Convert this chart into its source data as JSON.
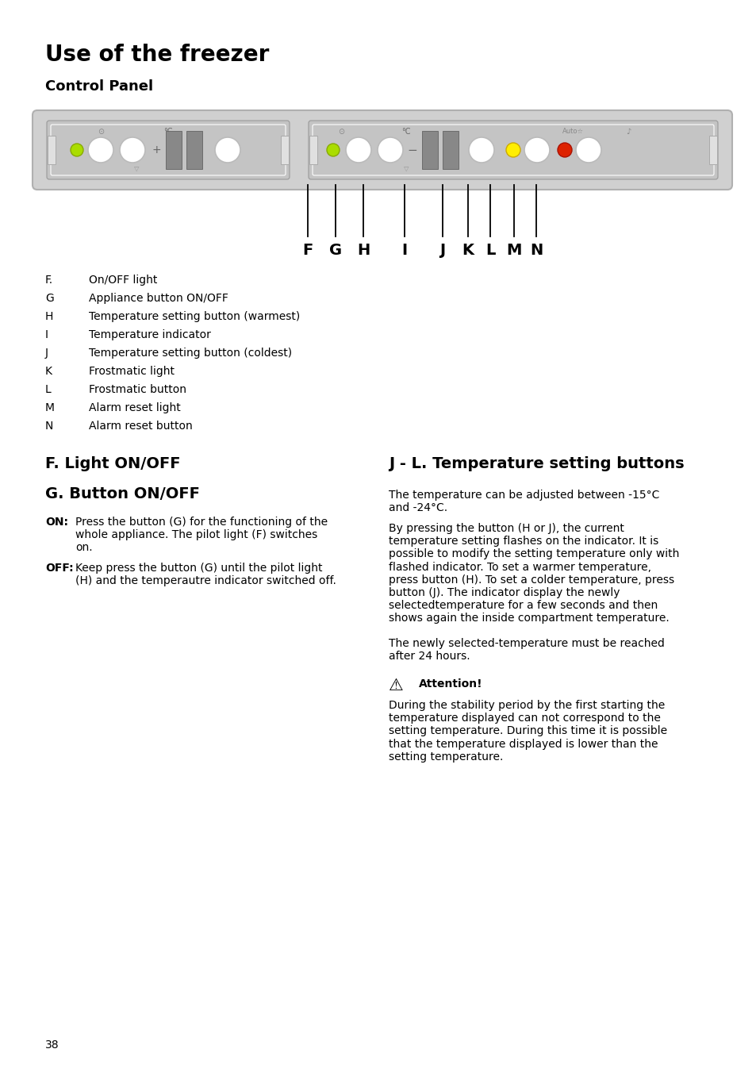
{
  "title": "Use of the freezer",
  "subtitle": "Control Panel",
  "page_number": "38",
  "background_color": "#ffffff",
  "labels_list": [
    [
      "F.",
      "On/OFF light"
    ],
    [
      "G",
      "Appliance button ON/OFF"
    ],
    [
      "H",
      "Temperature setting button (warmest)"
    ],
    [
      "I",
      "Temperature indicator"
    ],
    [
      "J",
      "Temperature setting button (coldest)"
    ],
    [
      "K",
      "Frostmatic light"
    ],
    [
      "L",
      "Frostmatic button"
    ],
    [
      "M",
      "Alarm reset light"
    ],
    [
      "N",
      "Alarm reset button"
    ]
  ],
  "section_left_title1": "F. Light ON/OFF",
  "section_left_title2": "G. Button ON/OFF",
  "on_label": "ON:",
  "on_body": "Press the button (G) for the functioning of the\nwhole appliance. The pilot light (F) switches\non.",
  "off_label": "OFF:",
  "off_body": "Keep press the button (G) until the pilot light\n(H) and the temperautre indicator switched off.",
  "section_right_title": "J - L. Temperature setting buttons",
  "right_para1": "The temperature can be adjusted between -15°C\nand -24°C.",
  "right_para2": "By pressing the button (H or J), the current\ntemperature setting flashes on the indicator. It is\npossible to modify the setting temperature only with\nflashed indicator. To set a warmer temperature,\npress button (H). To set a colder temperature, press\nbutton (J). The indicator display the newly\nselectedtemperature for a few seconds and then\nshows again the inside compartment temperature.",
  "right_para3": "The newly selected-temperature must be reached\nafter 24 hours.",
  "attention_title": "Attention!",
  "attention_body": "During the stability period by the first starting the\ntemperature displayed can not correspond to the\nsetting temperature. During this time it is possible\nthat the temperature displayed is lower than the\nsetting temperature."
}
